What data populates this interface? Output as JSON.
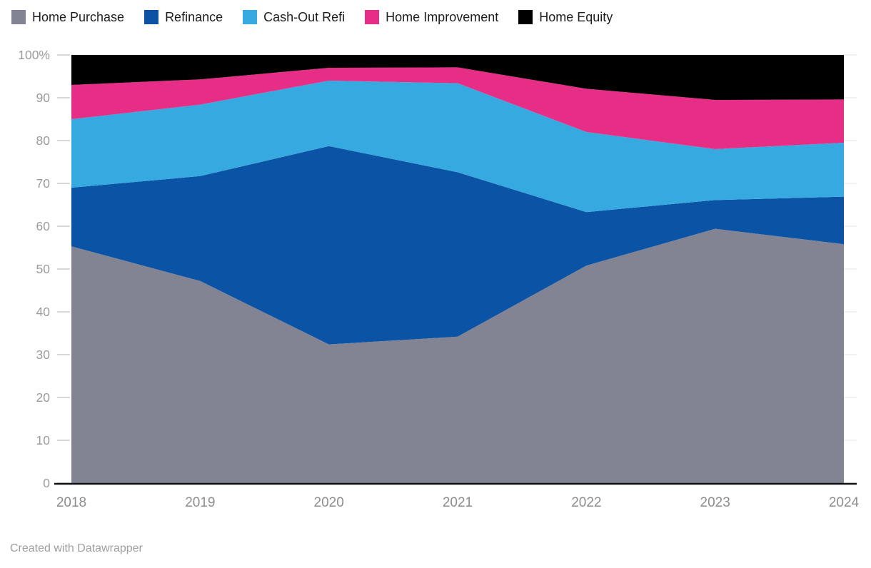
{
  "footer": {
    "credit": "Created with Datawrapper"
  },
  "axes": {
    "y_unit_suffix_on_top_tick": "%",
    "x_label_color": "#8d8d8d",
    "y_label_color": "#9b9b9b"
  },
  "colors": {
    "gridline": "#e0e0e0",
    "tick_stub": "#cccccc",
    "axis_line": "#111111",
    "legend_text": "#1d1d1d"
  },
  "chart_data": {
    "type": "area",
    "stacked": true,
    "normalized_100pct": true,
    "title": "",
    "xlabel": "",
    "ylabel": "",
    "x": [
      "2018",
      "2019",
      "2020",
      "2021",
      "2022",
      "2023",
      "2024"
    ],
    "series": [
      {
        "name": "Home Purchase",
        "color": "#828493",
        "values": [
          55.3,
          47.2,
          32.4,
          34.2,
          50.8,
          59.4,
          55.8
        ]
      },
      {
        "name": "Refinance",
        "color": "#0b53a5",
        "values": [
          13.7,
          24.5,
          46.3,
          38.4,
          12.5,
          6.7,
          11.1
        ]
      },
      {
        "name": "Cash-Out Refi",
        "color": "#36a9e1",
        "values": [
          16.0,
          16.7,
          15.3,
          20.8,
          18.7,
          11.9,
          12.6
        ]
      },
      {
        "name": "Home Improvement",
        "color": "#e72e87",
        "values": [
          8.0,
          5.9,
          3.0,
          3.7,
          10.1,
          11.5,
          10.1
        ]
      },
      {
        "name": "Home Equity",
        "color": "#000000",
        "values": [
          7.0,
          5.7,
          3.0,
          2.9,
          7.9,
          10.5,
          10.4
        ]
      }
    ],
    "y_ticks": [
      "0",
      "10",
      "20",
      "30",
      "40",
      "50",
      "60",
      "70",
      "80",
      "90",
      "100%"
    ],
    "ylim": [
      0,
      100
    ],
    "grid": true,
    "legend_position": "top"
  }
}
